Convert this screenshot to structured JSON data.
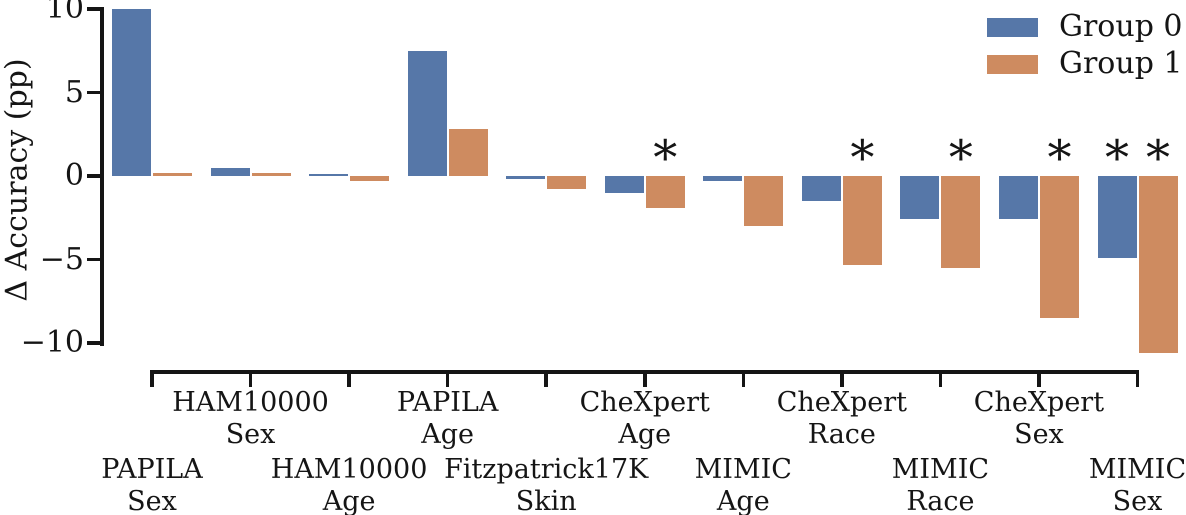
{
  "chart_data": {
    "type": "bar",
    "title": "",
    "xlabel": "",
    "ylabel": "Δ Accuracy (pp)",
    "ylim": [
      -10,
      10
    ],
    "yticks": [
      10,
      5,
      0,
      -5,
      -10
    ],
    "grid": false,
    "legend_position": "top-right",
    "significance_marker": "*",
    "significance_note": "asterisk shown above bars that are significant",
    "categories": [
      {
        "dataset": "PAPILA",
        "attribute": "Sex",
        "label_row": "lower"
      },
      {
        "dataset": "HAM10000",
        "attribute": "Sex",
        "label_row": "upper"
      },
      {
        "dataset": "HAM10000",
        "attribute": "Age",
        "label_row": "lower"
      },
      {
        "dataset": "PAPILA",
        "attribute": "Age",
        "label_row": "upper"
      },
      {
        "dataset": "Fitzpatrick17K",
        "attribute": "Skin",
        "label_row": "lower"
      },
      {
        "dataset": "CheXpert",
        "attribute": "Age",
        "label_row": "upper"
      },
      {
        "dataset": "MIMIC",
        "attribute": "Age",
        "label_row": "lower"
      },
      {
        "dataset": "CheXpert",
        "attribute": "Race",
        "label_row": "upper"
      },
      {
        "dataset": "MIMIC",
        "attribute": "Race",
        "label_row": "lower"
      },
      {
        "dataset": "CheXpert",
        "attribute": "Sex",
        "label_row": "upper"
      },
      {
        "dataset": "MIMIC",
        "attribute": "Sex",
        "label_row": "lower"
      }
    ],
    "series": [
      {
        "name": "Group 0",
        "color": "#5677A8",
        "values": [
          10.0,
          0.45,
          0.1,
          7.5,
          -0.2,
          -1.0,
          -0.3,
          -1.5,
          -2.6,
          -2.6,
          -4.9
        ],
        "starred": [
          false,
          false,
          false,
          false,
          false,
          false,
          false,
          false,
          false,
          false,
          true
        ]
      },
      {
        "name": "Group 1",
        "color": "#CE8B60",
        "values": [
          0.15,
          0.2,
          -0.3,
          2.8,
          -0.8,
          -1.9,
          -3.0,
          -5.3,
          -5.5,
          -8.5,
          -10.6
        ],
        "starred": [
          false,
          false,
          false,
          false,
          false,
          true,
          false,
          true,
          true,
          true,
          true
        ]
      }
    ]
  }
}
